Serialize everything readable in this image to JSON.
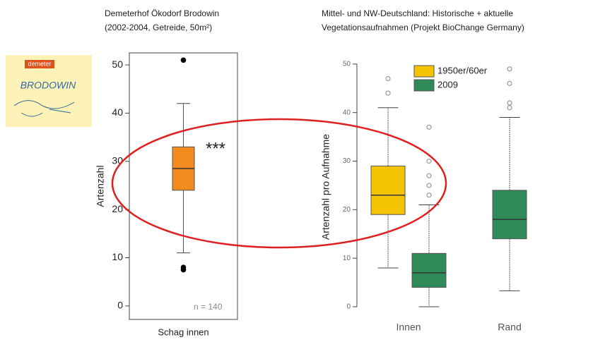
{
  "logo": {
    "brand": "demeter",
    "name": "BRODOWIN"
  },
  "chart_data": [
    {
      "type": "box",
      "title": "Demeterhof Ökodorf Brodowin",
      "subtitle": "(2002-2004, Getreide, 50m²)",
      "ylabel": "Artenzahl",
      "categories": [
        "Schag innen"
      ],
      "series": [
        {
          "color": "#f28c1e",
          "flier_color": "#000000",
          "flier_fill": "#000000",
          "values": [
            {
              "whislo": 11,
              "q1": 24,
              "med": 28.5,
              "q3": 33,
              "whishi": 42,
              "fliers": [
                51,
                8,
                7.5
              ]
            }
          ]
        }
      ],
      "ylim": [
        -2.8,
        52.5
      ],
      "yticks": [
        0,
        10,
        20,
        30,
        40,
        50
      ],
      "annotations": [
        "***",
        "n = 140"
      ]
    },
    {
      "type": "box",
      "title": "Mittel- und NW-Deutschland: Historische + aktuelle",
      "subtitle": "Vegetationsaufnahmen (Projekt BioChange Germany)",
      "ylabel": "Artenzahl pro Aufnahme",
      "categories": [
        "Innen",
        "Rand"
      ],
      "series": [
        {
          "name": "1950er/60er",
          "color": "#f5c400",
          "flier_color": "#999999",
          "flier_fill": "none",
          "values": [
            {
              "whislo": 8,
              "q1": 19,
              "med": 23,
              "q3": 29,
              "whishi": 41,
              "fliers": [
                44,
                47
              ]
            },
            null
          ]
        },
        {
          "name": "2009",
          "color": "#2e8b57",
          "flier_color": "#999999",
          "flier_fill": "none",
          "values": [
            {
              "whislo": 0,
              "q1": 4,
              "med": 7,
              "q3": 11,
              "whishi": 21,
              "fliers": [
                23,
                25,
                27,
                30,
                37
              ]
            },
            {
              "whislo": 3.3,
              "q1": 14,
              "med": 18,
              "q3": 24,
              "whishi": 39,
              "fliers": [
                41,
                42,
                46,
                49
              ]
            }
          ]
        }
      ],
      "ylim": [
        -2.9,
        52.3
      ],
      "yticks": [
        0,
        10,
        20,
        30,
        40,
        50
      ]
    }
  ]
}
